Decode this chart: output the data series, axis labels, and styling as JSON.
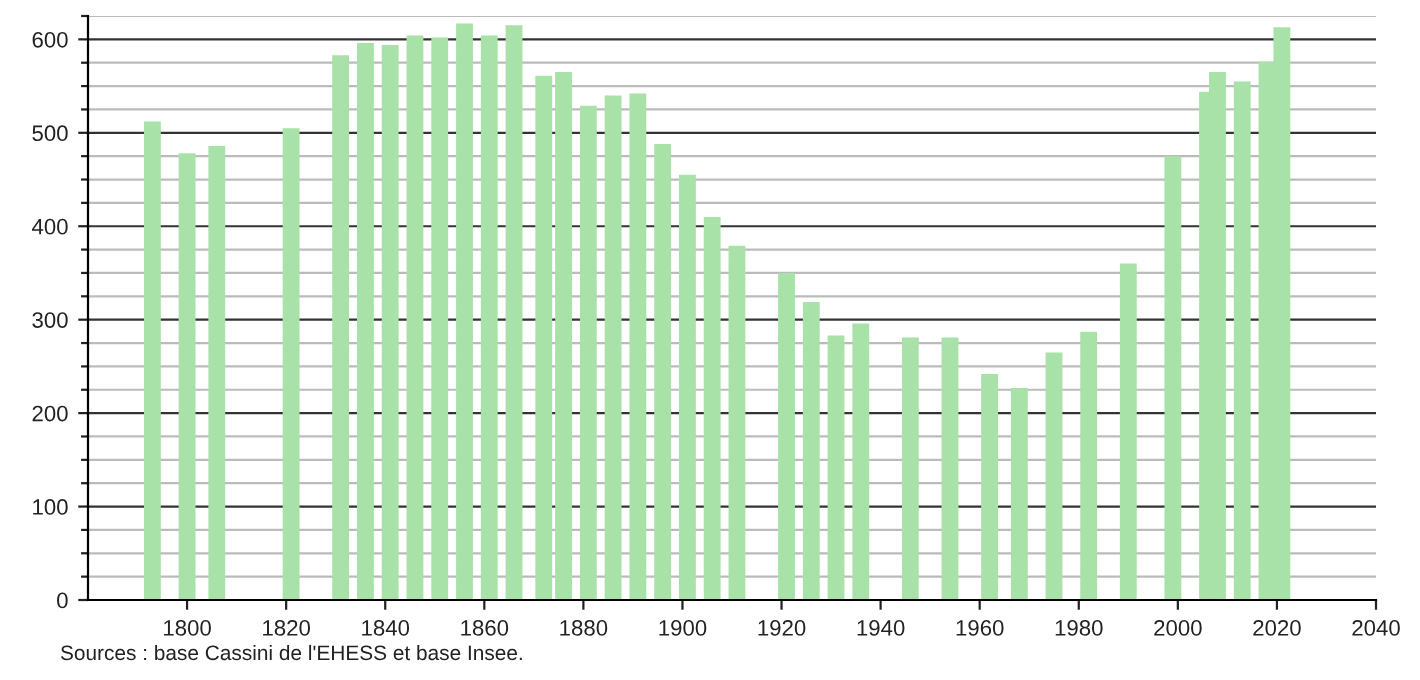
{
  "chart_data": {
    "type": "bar",
    "x": [
      1793,
      1800,
      1806,
      1821,
      1831,
      1836,
      1841,
      1846,
      1851,
      1856,
      1861,
      1866,
      1872,
      1876,
      1881,
      1886,
      1891,
      1896,
      1901,
      1906,
      1911,
      1921,
      1926,
      1931,
      1936,
      1946,
      1954,
      1962,
      1968,
      1975,
      1982,
      1990,
      1999,
      2006,
      2008,
      2013,
      2018,
      2021
    ],
    "values": [
      512,
      478,
      486,
      505,
      583,
      596,
      594,
      604,
      602,
      617,
      604,
      615,
      561,
      565,
      529,
      540,
      542,
      488,
      455,
      410,
      379,
      350,
      319,
      283,
      296,
      281,
      281,
      242,
      227,
      265,
      287,
      360,
      475,
      544,
      565,
      555,
      576,
      613
    ],
    "color": "#a8e2a8",
    "xlim": [
      1780,
      2040
    ],
    "xticks": [
      1800,
      1820,
      1840,
      1860,
      1880,
      1900,
      1920,
      1940,
      1960,
      1980,
      2000,
      2020,
      2040
    ],
    "ylim": [
      0,
      625
    ],
    "yticks": [
      0,
      {
        "value": 25,
        "label": null
      },
      {
        "value": 50,
        "label": null
      },
      {
        "value": 75,
        "label": null
      },
      100,
      {
        "value": 125,
        "label": null
      },
      {
        "value": 150,
        "label": null
      },
      {
        "value": 175,
        "label": null
      },
      200,
      {
        "value": 225,
        "label": null
      },
      {
        "value": 250,
        "label": null
      },
      {
        "value": 275,
        "label": null
      },
      300,
      {
        "value": 325,
        "label": null
      },
      {
        "value": 350,
        "label": null
      },
      {
        "value": 375,
        "label": null
      },
      400,
      {
        "value": 425,
        "label": null
      },
      {
        "value": 450,
        "label": null
      },
      {
        "value": 475,
        "label": null
      },
      500,
      {
        "value": 525,
        "label": null
      },
      {
        "value": 550,
        "label": null
      },
      {
        "value": 575,
        "label": null
      },
      600,
      {
        "value": 625,
        "label": null
      }
    ],
    "grid": "y",
    "annotations": [
      "Sources : base Cassini de l'EHESS et base Insee."
    ]
  }
}
